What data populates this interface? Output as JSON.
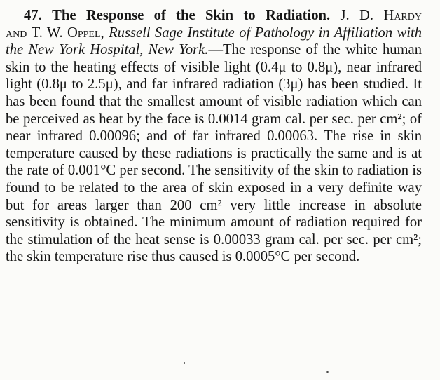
{
  "abstract": {
    "number": "47.",
    "title": "The Response of the Skin to Radiation.",
    "author_1": "J. D. Hardy",
    "and": "and",
    "author_2": "T. W. Oppel,",
    "affiliation": "Russell Sage Institute of Pathology in Affiliation with the New York Hospital, New York.",
    "dash": "—",
    "body": "The response of the white human skin to the heating effects of visible light (0.4μ to 0.8μ), near infrared light (0.8μ to 2.5μ), and far infrared radiation (3μ) has been studied. It has been found that the smallest amount of visible radiation which can be perceived as heat by the face is 0.0014 gram cal. per sec. per cm²; of near infrared 0.00096; and of far infrared 0.00063. The rise in skin temperature caused by these radiations is practically the same and is at the rate of 0.001°C per second. The sensitivity of the skin to radiation is found to be related to the area of skin exposed in a very definite way but for areas larger than 200 cm² very little increase in absolute sensitivity is obtained. The minimum amount of radiation required for the stimulation of the heat sense is 0.00033 gram cal. per sec. per cm²; the skin temperature rise thus caused is 0.0005°C per second."
  }
}
